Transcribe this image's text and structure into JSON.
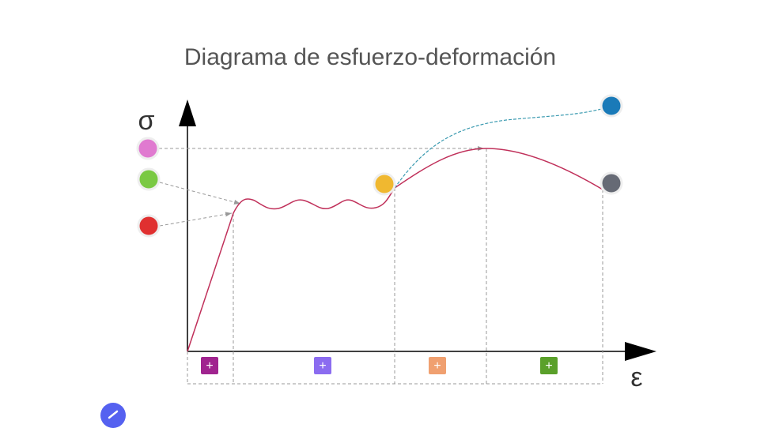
{
  "title": "Diagrama de esfuerzo-deformación",
  "axes": {
    "y_label": "σ",
    "x_label": "ε"
  },
  "segments": [
    {
      "label": "+",
      "color": "#a0248f"
    },
    {
      "label": "+",
      "color": "#8b6cf0"
    },
    {
      "label": "+",
      "color": "#f0a070"
    },
    {
      "label": "+",
      "color": "#5aa02a"
    }
  ]
}
